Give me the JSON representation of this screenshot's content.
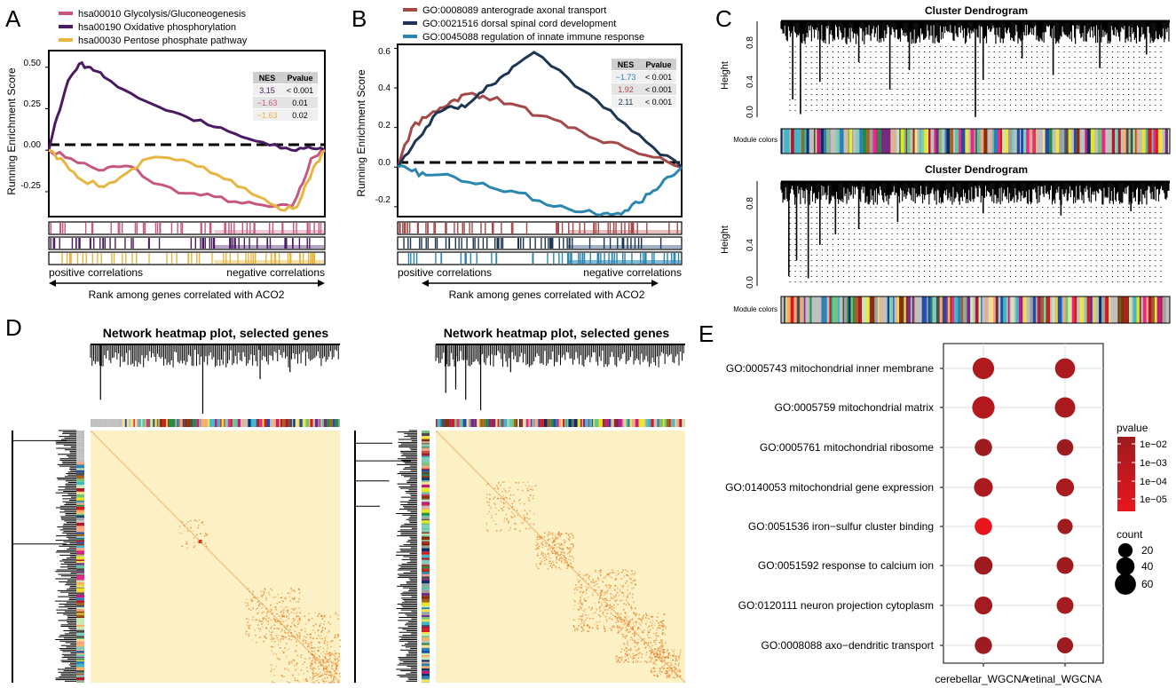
{
  "panel_letters": [
    "A",
    "B",
    "C",
    "D",
    "E"
  ],
  "colors": {
    "pink": "#c7577f",
    "purple": "#4a1a62",
    "yellow": "#e8b640",
    "brown": "#a54848",
    "navy": "#1c3553",
    "teal": "#2a86b0",
    "heat_bg": "#fcf1c4",
    "heat_dot": "#e07a22"
  },
  "chart_data": [
    {
      "panel": "A",
      "type": "line",
      "title": "",
      "xlabel": "Rank among genes correlated with ACO2",
      "ylabel": "Running Enrichment Score",
      "ylim": [
        -0.4,
        0.6
      ],
      "yticks": [
        "0.50",
        "0.25",
        "0.00",
        "-0.25"
      ],
      "ytick_values": [
        0.5,
        0.25,
        0.0,
        -0.25
      ],
      "x_left_label": "positive correlations",
      "x_right_label": "negative correlations",
      "legend": [
        "hsa00010 Glycolysis/Gluconeogenesis",
        "hsa00190 Oxidative phosphorylation",
        "hsa00030 Pentose phosphate pathway"
      ],
      "table_header": [
        "NES",
        "Pvalue"
      ],
      "table_rows": [
        [
          "3.15",
          "< 0.001"
        ],
        [
          "−1.63",
          "0.01"
        ],
        [
          "−1.63",
          "0.02"
        ]
      ],
      "series": [
        {
          "name": "hsa00010 Glycolysis/Gluconeogenesis",
          "color": "#c7577f",
          "x": [
            0,
            0.08,
            0.18,
            0.25,
            0.3,
            0.38,
            0.5,
            0.6,
            0.7,
            0.8,
            0.88,
            0.92,
            0.95,
            1
          ],
          "y": [
            0,
            -0.05,
            -0.12,
            -0.1,
            -0.1,
            -0.2,
            -0.26,
            -0.28,
            -0.32,
            -0.34,
            -0.34,
            -0.2,
            -0.05,
            0
          ]
        },
        {
          "name": "hsa00190 Oxidative phosphorylation",
          "color": "#4a1a62",
          "x": [
            0,
            0.03,
            0.07,
            0.11,
            0.15,
            0.2,
            0.3,
            0.4,
            0.5,
            0.6,
            0.7,
            0.8,
            0.88,
            0.94,
            1
          ],
          "y": [
            0,
            0.2,
            0.42,
            0.52,
            0.5,
            0.44,
            0.34,
            0.26,
            0.2,
            0.14,
            0.08,
            0.03,
            0.0,
            0.02,
            0
          ]
        },
        {
          "name": "hsa00030 Pentose phosphate pathway",
          "color": "#e8b640",
          "x": [
            0,
            0.06,
            0.12,
            0.2,
            0.28,
            0.36,
            0.46,
            0.56,
            0.66,
            0.76,
            0.84,
            0.9,
            0.96,
            1
          ],
          "y": [
            0,
            -0.08,
            -0.18,
            -0.22,
            -0.14,
            -0.05,
            -0.06,
            -0.1,
            -0.18,
            -0.28,
            -0.36,
            -0.34,
            -0.1,
            0
          ]
        }
      ],
      "rug_colors": [
        "#c7577f",
        "#4a1a62",
        "#e8b640"
      ],
      "rug_background_colors": [
        "#f0c8d8",
        "#b6a2c4",
        "#f5e1a8"
      ]
    },
    {
      "panel": "B",
      "type": "line",
      "title": "",
      "xlabel": "Rank among genes correlated with ACO2",
      "ylabel": "Running Enrichment Score",
      "ylim": [
        -0.25,
        0.62
      ],
      "yticks": [
        "0.6",
        "0.4",
        "0.2",
        "0.0",
        "-0.2"
      ],
      "ytick_values": [
        0.6,
        0.4,
        0.2,
        0.0,
        -0.2
      ],
      "x_left_label": "positive correlations",
      "x_right_label": "negative correlations",
      "legend": [
        "GO:0008089 anterograde axonal transport",
        "GO:0021516 dorsal spinal cord development",
        "GO:0045088 regulation of innate immune response"
      ],
      "table_header": [
        "NES",
        "Pvalue"
      ],
      "table_rows": [
        [
          "−1.73",
          "< 0.001"
        ],
        [
          "1.92",
          "< 0.001"
        ],
        [
          "2.11",
          "< 0.001"
        ]
      ],
      "series": [
        {
          "name": "GO:0008089 anterograde axonal transport",
          "color": "#a54848",
          "x": [
            0,
            0.05,
            0.1,
            0.15,
            0.2,
            0.25,
            0.3,
            0.4,
            0.5,
            0.6,
            0.7,
            0.8,
            0.9,
            1
          ],
          "y": [
            0,
            0.2,
            0.25,
            0.3,
            0.34,
            0.37,
            0.36,
            0.32,
            0.26,
            0.2,
            0.14,
            0.1,
            0.05,
            0
          ]
        },
        {
          "name": "GO:0021516 dorsal spinal cord development",
          "color": "#1c3553",
          "x": [
            0,
            0.05,
            0.1,
            0.15,
            0.2,
            0.25,
            0.3,
            0.36,
            0.42,
            0.48,
            0.6,
            0.7,
            0.8,
            0.9,
            1
          ],
          "y": [
            0,
            0.1,
            0.2,
            0.28,
            0.3,
            0.32,
            0.38,
            0.45,
            0.52,
            0.58,
            0.45,
            0.34,
            0.22,
            0.1,
            0
          ]
        },
        {
          "name": "GO:0045088 regulation of innate immune response",
          "color": "#2a86b0",
          "x": [
            0,
            0.05,
            0.1,
            0.2,
            0.3,
            0.4,
            0.5,
            0.6,
            0.7,
            0.75,
            0.8,
            0.85,
            0.9,
            0.95,
            1
          ],
          "y": [
            0,
            -0.02,
            -0.04,
            -0.05,
            -0.08,
            -0.12,
            -0.17,
            -0.21,
            -0.24,
            -0.24,
            -0.22,
            -0.18,
            -0.12,
            -0.05,
            0
          ]
        }
      ],
      "rug_colors": [
        "#a54848",
        "#1c3553",
        "#2a86b0"
      ],
      "rug_background_colors": [
        "#e8c0c0",
        "#a3b2c6",
        "#7fbcd9"
      ]
    },
    {
      "panel": "C",
      "type": "dendrogram",
      "plots": [
        {
          "title": "Cluster Dendrogram",
          "ylabel": "Height",
          "yticks": [
            "0.8",
            "0.4",
            "0.0"
          ],
          "ytick_values": [
            0.8,
            0.4,
            0.0
          ],
          "ylim": [
            0,
            1
          ],
          "module_label": "Module colors"
        },
        {
          "title": "Cluster Dendrogram",
          "ylabel": "Height",
          "yticks": [
            "0.8",
            "0.4",
            "0.0"
          ],
          "ytick_values": [
            0.8,
            0.4,
            0.0
          ],
          "ylim": [
            0,
            1
          ],
          "module_label": "Module colors"
        }
      ]
    },
    {
      "panel": "D",
      "type": "heatmap",
      "plots": [
        {
          "title": "Network heatmap plot, selected genes"
        },
        {
          "title": "Network heatmap plot, selected genes"
        }
      ]
    },
    {
      "panel": "E",
      "type": "scatter",
      "title": "",
      "categories": [
        "cerebellar_WGCNA",
        "retinal_WGCNA"
      ],
      "terms": [
        "GO:0005743 mitochondrial inner membrane",
        "GO:0005759 mitochondrial matrix",
        "GO:0005761 mitochondrial ribosome",
        "GO:0140053 mitochondrial gene expression",
        "GO:0051536 iron−sulfur cluster binding",
        "GO:0051592 response to calcium ion",
        "GO:0120111 neuron projection cytoplasm",
        "GO:0008088 axo−dendritic transport"
      ],
      "points": [
        {
          "term": 0,
          "category": 0,
          "count": 62,
          "pvalue": 0.002
        },
        {
          "term": 0,
          "category": 1,
          "count": 52,
          "pvalue": 0.003
        },
        {
          "term": 1,
          "category": 0,
          "count": 70,
          "pvalue": 0.001
        },
        {
          "term": 1,
          "category": 1,
          "count": 54,
          "pvalue": 0.003
        },
        {
          "term": 2,
          "category": 0,
          "count": 35,
          "pvalue": 0.01
        },
        {
          "term": 2,
          "category": 1,
          "count": 30,
          "pvalue": 0.01
        },
        {
          "term": 3,
          "category": 0,
          "count": 44,
          "pvalue": 0.003
        },
        {
          "term": 3,
          "category": 1,
          "count": 38,
          "pvalue": 0.003
        },
        {
          "term": 4,
          "category": 0,
          "count": 35,
          "pvalue": 5e-06
        },
        {
          "term": 4,
          "category": 1,
          "count": 24,
          "pvalue": 0.01
        },
        {
          "term": 5,
          "category": 0,
          "count": 40,
          "pvalue": 0.01
        },
        {
          "term": 5,
          "category": 1,
          "count": 32,
          "pvalue": 0.01
        },
        {
          "term": 6,
          "category": 0,
          "count": 38,
          "pvalue": 0.005
        },
        {
          "term": 6,
          "category": 1,
          "count": 32,
          "pvalue": 0.005
        },
        {
          "term": 7,
          "category": 0,
          "count": 34,
          "pvalue": 0.01
        },
        {
          "term": 7,
          "category": 1,
          "count": 28,
          "pvalue": 0.01
        }
      ],
      "pvalue_legend": {
        "title": "pvalue",
        "labels": [
          "1e−02",
          "1e−03",
          "1e−04",
          "1e−05"
        ],
        "color_high": "#9e1b1f",
        "color_low": "#e8161c"
      },
      "count_legend": {
        "title": "count",
        "labels": [
          "20",
          "40",
          "60"
        ],
        "values": [
          20,
          40,
          60
        ]
      }
    }
  ]
}
